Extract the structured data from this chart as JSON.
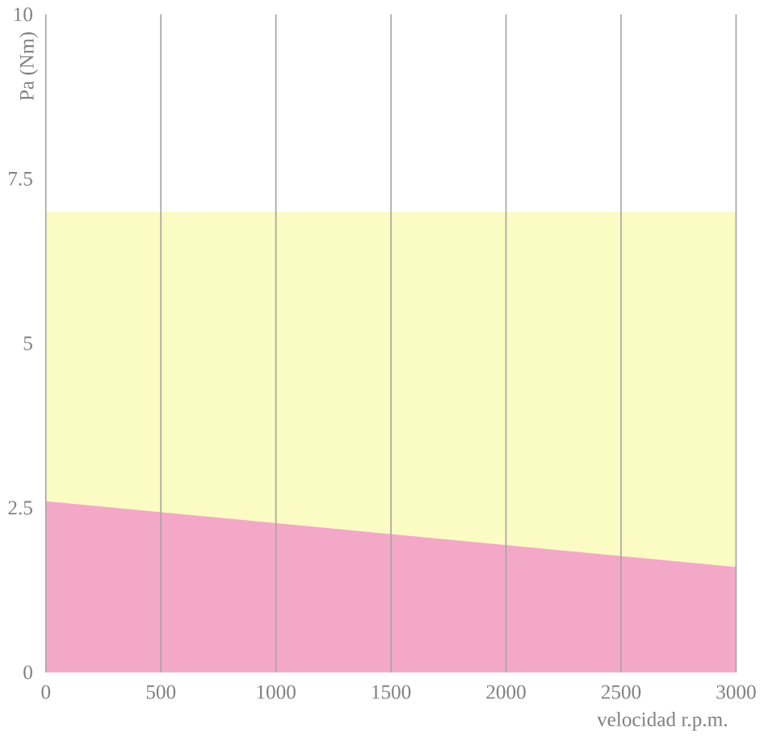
{
  "chart_data": {
    "type": "area",
    "xlabel": "velocidad r.p.m.",
    "ylabel": "Pa (Nm)",
    "x": [
      0,
      3000
    ],
    "series": [
      {
        "color": "#fbfbc4",
        "values": [
          7,
          7
        ]
      },
      {
        "color": "#f4a8c8",
        "values": [
          2.6,
          1.6
        ]
      }
    ],
    "xlim": [
      0,
      3000
    ],
    "xticks": [
      0,
      500,
      1000,
      1500,
      2000,
      2500,
      3000
    ],
    "ylim": [
      0,
      10
    ],
    "yticks": [
      0,
      2.5,
      5,
      7.5,
      10
    ],
    "grid": "x"
  }
}
